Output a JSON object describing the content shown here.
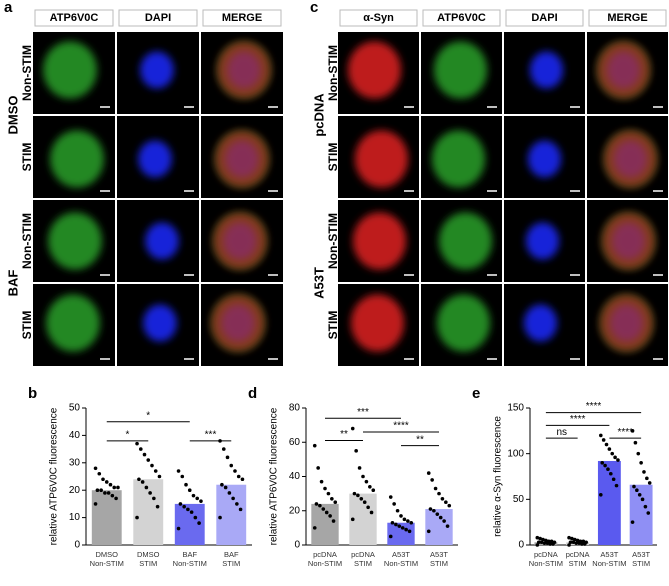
{
  "panel_a": {
    "label": "a",
    "columns": [
      "ATP6V0C",
      "DAPI",
      "MERGE"
    ],
    "groups": [
      {
        "name": "DMSO",
        "rows": [
          "Non-STIM",
          "STIM"
        ]
      },
      {
        "name": "BAF",
        "rows": [
          "Non-STIM",
          "STIM"
        ]
      }
    ]
  },
  "panel_c": {
    "label": "c",
    "columns": [
      "α-Syn",
      "ATP6V0C",
      "DAPI",
      "MERGE"
    ],
    "groups": [
      {
        "name": "pcDNA",
        "rows": [
          "Non-STIM",
          "STIM"
        ]
      },
      {
        "name": "A53T",
        "rows": [
          "Non-STIM",
          "STIM"
        ]
      }
    ]
  },
  "chart_data": [
    {
      "type": "bar",
      "panel_label": "b",
      "y_label": "relative ATP6V0C fluorescence",
      "ylim": [
        0,
        50
      ],
      "yticks": [
        0,
        10,
        20,
        30,
        40,
        50
      ],
      "categories": [
        [
          "DMSO",
          "Non-STIM"
        ],
        [
          "DMSO",
          "STIM"
        ],
        [
          "BAF",
          "Non-STIM"
        ],
        [
          "BAF",
          "STIM"
        ]
      ],
      "colors": [
        "#a6a6a6",
        "#d3d3d3",
        "#6a6aef",
        "#a9a9f6"
      ],
      "values": [
        20,
        24,
        15,
        22
      ],
      "points": [
        [
          15,
          17,
          18,
          19,
          19,
          20,
          20,
          21,
          21,
          22,
          23,
          24,
          26,
          28
        ],
        [
          10,
          14,
          17,
          19,
          21,
          23,
          24,
          25,
          27,
          29,
          31,
          33,
          35,
          37
        ],
        [
          6,
          8,
          10,
          12,
          13,
          14,
          15,
          16,
          17,
          18,
          20,
          22,
          25,
          27
        ],
        [
          10,
          13,
          15,
          17,
          19,
          21,
          22,
          24,
          25,
          27,
          29,
          32,
          35,
          38
        ]
      ],
      "brackets": [
        {
          "from": 0,
          "to": 2,
          "y": 45,
          "label": "*"
        },
        {
          "from": 0,
          "to": 1,
          "y": 38,
          "label": "*"
        },
        {
          "from": 2,
          "to": 3,
          "y": 38,
          "label": "***"
        }
      ]
    },
    {
      "type": "bar",
      "panel_label": "d",
      "y_label": "relative ATP6V0C fluorescence",
      "ylim": [
        0,
        80
      ],
      "yticks": [
        0,
        20,
        40,
        60,
        80
      ],
      "categories": [
        [
          "pcDNA",
          "Non-STIM"
        ],
        [
          "pcDNA",
          "STIM"
        ],
        [
          "A53T",
          "Non-STIM"
        ],
        [
          "A53T",
          "STIM"
        ]
      ],
      "colors": [
        "#a6a6a6",
        "#d3d3d3",
        "#6a6aef",
        "#a9a9f6"
      ],
      "values": [
        24,
        30,
        13,
        21
      ],
      "points": [
        [
          10,
          14,
          17,
          19,
          21,
          23,
          24,
          25,
          27,
          30,
          33,
          37,
          45,
          58
        ],
        [
          15,
          19,
          22,
          25,
          27,
          29,
          30,
          32,
          34,
          37,
          40,
          45,
          55,
          68
        ],
        [
          5,
          8,
          9,
          10,
          11,
          12,
          13,
          13,
          14,
          15,
          17,
          20,
          24,
          28
        ],
        [
          8,
          11,
          14,
          16,
          18,
          20,
          21,
          23,
          25,
          27,
          30,
          33,
          38,
          42
        ]
      ],
      "brackets": [
        {
          "from": 0,
          "to": 2,
          "y": 74,
          "label": "***"
        },
        {
          "from": 1,
          "to": 3,
          "y": 66,
          "label": "****"
        },
        {
          "from": 0,
          "to": 1,
          "y": 61,
          "label": "**"
        },
        {
          "from": 2,
          "to": 3,
          "y": 58,
          "label": "**"
        }
      ]
    },
    {
      "type": "bar",
      "panel_label": "e",
      "y_label": "relative α-Syn fluorescence",
      "ylim": [
        0,
        150
      ],
      "yticks": [
        0,
        50,
        100,
        150
      ],
      "categories": [
        [
          "pcDNA",
          "Non-STIM"
        ],
        [
          "pcDNA",
          "STIM"
        ],
        [
          "A53T",
          "Non-STIM"
        ],
        [
          "A53T",
          "STIM"
        ]
      ],
      "colors": [
        "#a6a6a6",
        "#d3d3d3",
        "#5a5aef",
        "#8f8ff5"
      ],
      "values": [
        3,
        3,
        92,
        66
      ],
      "points": [
        [
          0,
          1,
          1,
          2,
          2,
          3,
          3,
          3,
          4,
          4,
          5,
          6,
          7,
          8
        ],
        [
          0,
          1,
          1,
          2,
          2,
          3,
          3,
          3,
          4,
          4,
          5,
          6,
          7,
          8
        ],
        [
          55,
          65,
          72,
          78,
          83,
          87,
          90,
          93,
          96,
          100,
          105,
          110,
          115,
          120
        ],
        [
          25,
          35,
          42,
          50,
          55,
          60,
          64,
          68,
          73,
          80,
          90,
          100,
          112,
          125
        ]
      ],
      "brackets": [
        {
          "from": 0,
          "to": 3,
          "y": 145,
          "label": "****"
        },
        {
          "from": 0,
          "to": 2,
          "y": 131,
          "label": "****"
        },
        {
          "from": 0,
          "to": 1,
          "y": 117,
          "label": "ns"
        },
        {
          "from": 2,
          "to": 3,
          "y": 117,
          "label": "****"
        }
      ]
    }
  ]
}
